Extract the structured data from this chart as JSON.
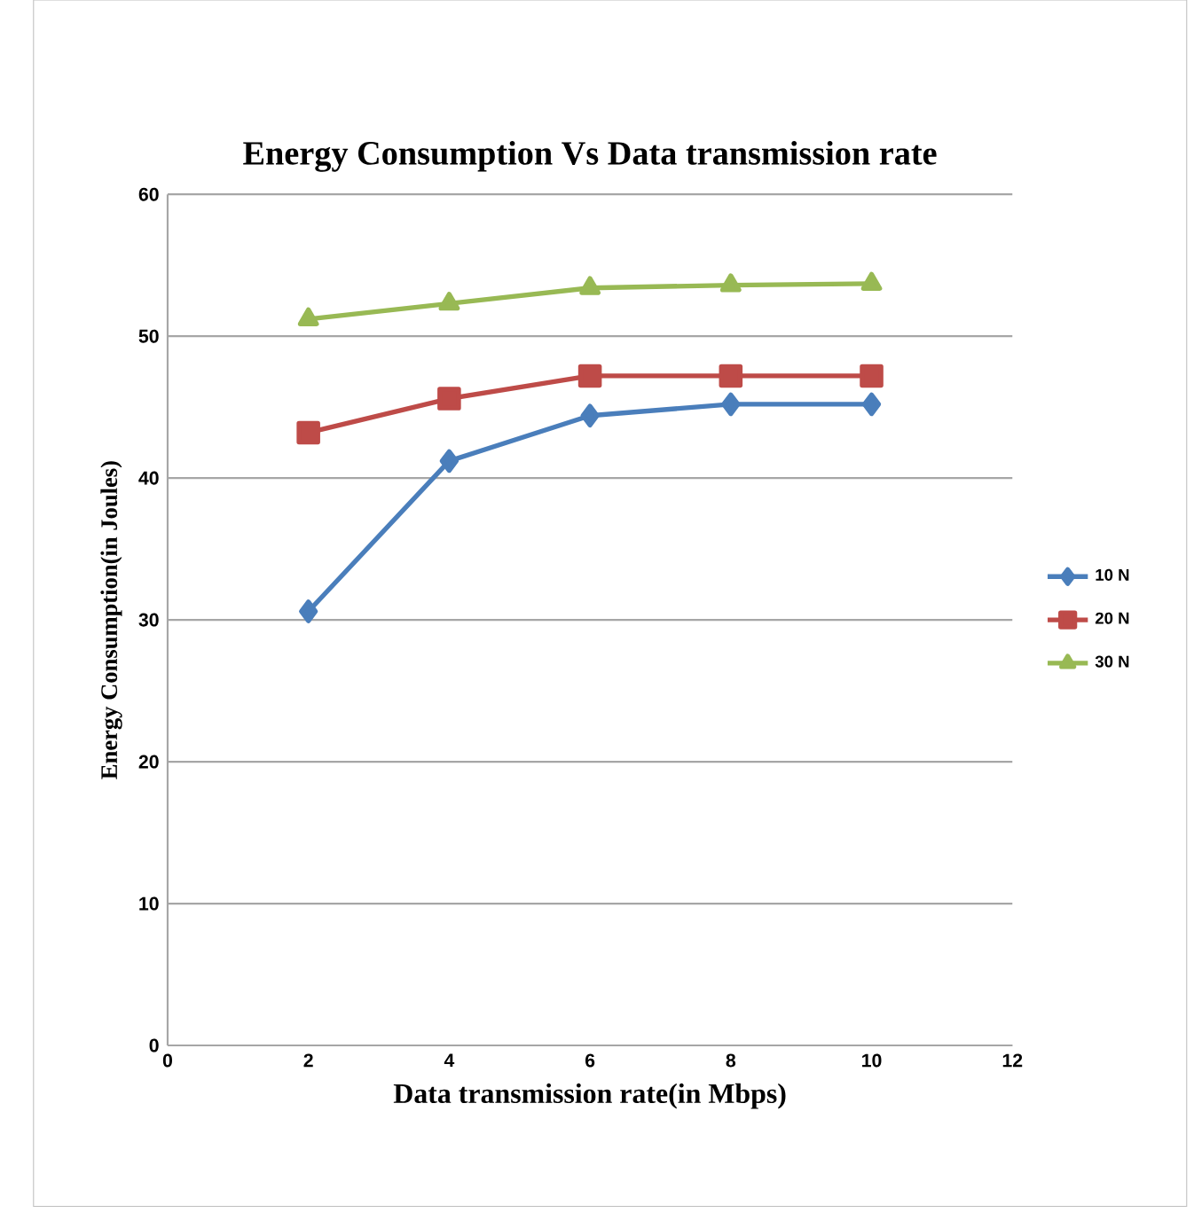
{
  "chart_data": {
    "type": "line",
    "title": "Energy Consumption Vs Data transmission rate",
    "xlabel": "Data transmission rate(in Mbps)",
    "ylabel": "Energy Consumption(in Joules)",
    "x": [
      2,
      4,
      6,
      8,
      10
    ],
    "series": [
      {
        "name": "10 N",
        "color": "#4a7ebb",
        "marker": "diamond",
        "values": [
          30.6,
          41.2,
          44.4,
          45.2,
          45.2
        ]
      },
      {
        "name": "20 N",
        "color": "#be4b48",
        "marker": "square",
        "values": [
          43.2,
          45.6,
          47.2,
          47.2,
          47.2
        ]
      },
      {
        "name": "30 N",
        "color": "#98b954",
        "marker": "triangle",
        "values": [
          51.2,
          52.3,
          53.4,
          53.6,
          53.7
        ]
      }
    ],
    "xlim": [
      0,
      12
    ],
    "xticks": [
      0,
      2,
      4,
      6,
      8,
      10,
      12
    ],
    "ylim": [
      0,
      60
    ],
    "yticks": [
      0,
      10,
      20,
      30,
      40,
      50,
      60
    ],
    "grid": "y",
    "legend": "right",
    "line_style": "solid"
  }
}
